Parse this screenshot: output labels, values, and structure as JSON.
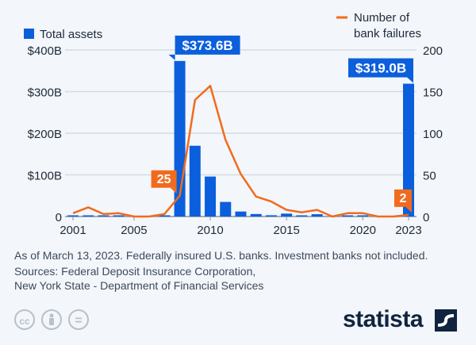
{
  "chart_data": {
    "type": "bar+line",
    "categories": [
      2001,
      2002,
      2003,
      2004,
      2005,
      2006,
      2007,
      2008,
      2009,
      2010,
      2011,
      2012,
      2013,
      2014,
      2015,
      2016,
      2017,
      2018,
      2019,
      2020,
      2021,
      2022,
      2023
    ],
    "x_tick_labels": [
      "2001",
      "2005",
      "2010",
      "2015",
      "2020",
      "2023"
    ],
    "series": [
      {
        "name": "Total assets",
        "type": "bar",
        "axis": "left",
        "color": "#0b5fdc",
        "values": [
          2.4,
          2.7,
          1.1,
          0.2,
          0,
          0,
          2.6,
          373.6,
          170,
          96,
          35,
          12,
          6,
          3,
          7,
          0.3,
          5.6,
          0,
          0.2,
          0.5,
          0,
          0,
          319.0
        ]
      },
      {
        "name": "Number of bank failures",
        "type": "line",
        "axis": "right",
        "color": "#f26b1d",
        "values": [
          4,
          11,
          3,
          4,
          0,
          0,
          3,
          25,
          140,
          157,
          92,
          51,
          24,
          18,
          8,
          5,
          8,
          0,
          4,
          4,
          0,
          0,
          2
        ]
      }
    ],
    "left_axis": {
      "ylim": [
        0,
        400
      ],
      "ticks": [
        "0",
        "$100B",
        "$200B",
        "$300B",
        "$400B"
      ]
    },
    "right_axis": {
      "ylim": [
        0,
        200
      ],
      "ticks": [
        "0",
        "50",
        "100",
        "150",
        "200"
      ]
    },
    "annotations": [
      {
        "year": 2008,
        "series": "Total assets",
        "text": "$373.6B"
      },
      {
        "year": 2023,
        "series": "Total assets",
        "text": "$319.0B"
      },
      {
        "year": 2008,
        "series": "Number of bank failures",
        "text": "25"
      },
      {
        "year": 2023,
        "series": "Number of bank failures",
        "text": "2"
      }
    ],
    "legend": {
      "left": "Total assets",
      "right_line1": "Number of",
      "right_line2": "bank failures",
      "placement": "top"
    },
    "grid": true
  },
  "notes": {
    "line1": "As of March 13, 2023. Federally insured U.S. banks. Investment banks not included.",
    "line2": "Sources: Federal Deposit Insurance Corporation,",
    "line3": "New York State - Department of Financial Services"
  },
  "footer": {
    "license_icons": [
      "cc-icon",
      "person-icon",
      "equals-icon"
    ],
    "cc": "cc",
    "eq": "=",
    "brand": "statista"
  }
}
